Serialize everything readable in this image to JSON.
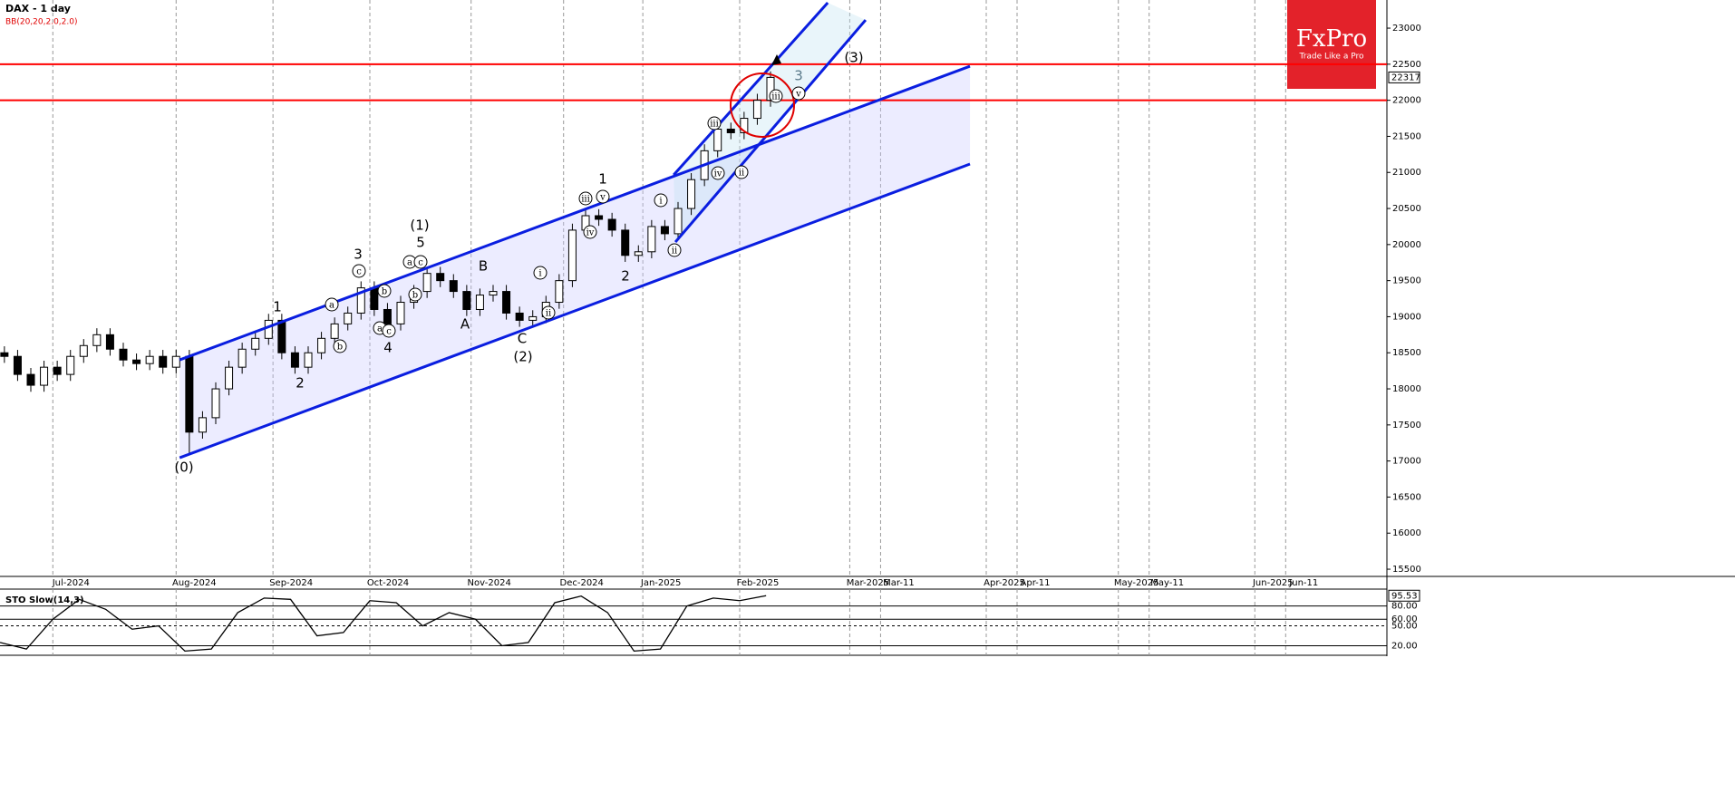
{
  "chart_data": {
    "type": "candlestick",
    "title": "DAX - 1 day",
    "indicator": "BB(20,20,2.0,2.0)",
    "x": [
      1,
      4,
      7,
      10,
      13,
      16,
      19,
      22,
      25,
      28,
      31,
      34,
      37,
      40,
      43,
      46,
      49,
      52,
      55,
      58,
      61,
      64,
      67,
      70,
      73,
      76,
      79,
      82,
      85,
      88,
      91,
      94,
      97,
      100,
      103,
      106,
      109,
      112,
      115,
      118,
      121,
      124,
      127,
      130,
      133,
      136,
      139,
      142,
      145,
      148,
      151,
      154,
      157,
      160,
      163,
      166,
      169,
      172,
      175
    ],
    "open": [
      18500,
      18450,
      18200,
      18050,
      18300,
      18200,
      18450,
      18600,
      18750,
      18550,
      18400,
      18350,
      18450,
      18300,
      18450,
      17400,
      17600,
      18000,
      18300,
      18550,
      18700,
      18950,
      18500,
      18300,
      18500,
      18700,
      18900,
      19050,
      19400,
      19100,
      18900,
      19200,
      19350,
      19600,
      19500,
      19350,
      19100,
      19300,
      19350,
      19050,
      18950,
      19000,
      19200,
      19500,
      20200,
      20400,
      20350,
      20200,
      19850,
      19900,
      20250,
      20150,
      20500,
      20900,
      21300,
      21600,
      21550,
      21750,
      22000
    ],
    "high": [
      18590,
      18540,
      18290,
      18390,
      18390,
      18540,
      18690,
      18840,
      18840,
      18640,
      18490,
      18540,
      18540,
      18540,
      18540,
      17690,
      18090,
      18390,
      18640,
      18790,
      19040,
      19040,
      18590,
      18590,
      18790,
      18990,
      19140,
      19490,
      19490,
      19190,
      19290,
      19440,
      19690,
      19690,
      19590,
      19440,
      19390,
      19440,
      19440,
      19140,
      19090,
      19290,
      19590,
      20290,
      20490,
      20490,
      20440,
      20290,
      19990,
      20340,
      20340,
      20590,
      20990,
      21390,
      21690,
      21690,
      21840,
      22090,
      22400
    ],
    "low": [
      18360,
      18110,
      17960,
      17960,
      18110,
      18110,
      18360,
      18510,
      18460,
      18310,
      18260,
      18260,
      18210,
      18210,
      17100,
      17310,
      17510,
      17910,
      18210,
      18460,
      18610,
      18410,
      18210,
      18210,
      18410,
      18610,
      18810,
      18960,
      19010,
      18810,
      18810,
      19110,
      19260,
      19410,
      19260,
      19010,
      19010,
      19210,
      18960,
      18860,
      18860,
      18910,
      19110,
      19410,
      20110,
      20260,
      20110,
      19760,
      19760,
      19810,
      20060,
      20060,
      20410,
      20810,
      21210,
      21460,
      21460,
      21660,
      21910
    ],
    "close": [
      18450,
      18200,
      18050,
      18300,
      18200,
      18450,
      18600,
      18750,
      18550,
      18400,
      18350,
      18450,
      18300,
      18450,
      17400,
      17600,
      18000,
      18300,
      18550,
      18700,
      18950,
      18500,
      18300,
      18500,
      18700,
      18900,
      19050,
      19400,
      19100,
      18900,
      19200,
      19350,
      19600,
      19500,
      19350,
      19100,
      19300,
      19350,
      19050,
      18950,
      19000,
      19200,
      19500,
      20200,
      20400,
      20350,
      20200,
      19850,
      19900,
      20250,
      20150,
      20500,
      20900,
      21300,
      21600,
      21550,
      21750,
      22000,
      22317
    ],
    "up_color": "#ffffff",
    "down_color": "#000000",
    "xlim": [
      0,
      315
    ],
    "ylim": [
      15400,
      23390
    ],
    "yticks": [
      15500,
      16000,
      16500,
      17000,
      17500,
      18000,
      18500,
      19000,
      19500,
      20000,
      20500,
      21000,
      21500,
      22000,
      22500,
      23000
    ],
    "xticks": [
      {
        "value": 12,
        "label": "Jul-2024"
      },
      {
        "value": 40,
        "label": "Aug-2024"
      },
      {
        "value": 62,
        "label": "Sep-2024"
      },
      {
        "value": 84,
        "label": "Oct-2024"
      },
      {
        "value": 107,
        "label": "Nov-2024"
      },
      {
        "value": 128,
        "label": "Dec-2024"
      },
      {
        "value": 146,
        "label": "Jan-2025"
      },
      {
        "value": 168,
        "label": "Feb-2025"
      },
      {
        "value": 193,
        "label": "Mar-2025"
      },
      {
        "value": 200,
        "label": "Mar-11"
      },
      {
        "value": 224,
        "label": "Apr-2025"
      },
      {
        "value": 231,
        "label": "Apr-11"
      },
      {
        "value": 254,
        "label": "May-2025"
      },
      {
        "value": 261,
        "label": "May-11"
      },
      {
        "value": 285,
        "label": "Jun-2025"
      },
      {
        "value": 292,
        "label": "Jun-11"
      }
    ],
    "last_price": 22317,
    "levels": [
      22500,
      22000
    ],
    "level_color": "#ff0000",
    "channel_color": "#0a1ee0",
    "channels": [
      {
        "x": [
          40.8,
          220.3
        ],
        "y": [
          18402,
          22472
        ]
      },
      {
        "x": [
          40.8,
          220.3
        ],
        "y": [
          17045,
          21116
        ]
      },
      {
        "x": [
          153,
          188
        ],
        "y": [
          20965,
          23352
        ]
      },
      {
        "x": [
          153.4,
          196.6
        ],
        "y": [
          20035,
          23113
        ]
      }
    ],
    "wave_labels": [
      "(0)",
      "1",
      "2",
      "3",
      "4",
      "(1)",
      "5",
      "A",
      "B",
      "C",
      "(2)",
      "1",
      "2",
      "3",
      "(3)"
    ],
    "subwave_labels": [
      "a",
      "b",
      "c",
      "a",
      "c",
      "b",
      "a",
      "c",
      "b",
      "i",
      "ii",
      "iii",
      "iv",
      "v",
      "i",
      "ii",
      "iii",
      "iv",
      "ii",
      "iii",
      "v"
    ],
    "stochastic": {
      "title": "STO Slow(14,3)",
      "x": [
        0,
        6,
        12,
        18,
        24,
        30,
        36,
        42,
        48,
        54,
        60,
        66,
        72,
        78,
        84,
        90,
        96,
        102,
        108,
        114,
        120,
        126,
        132,
        138,
        144,
        150,
        156,
        162,
        168,
        174
      ],
      "values": [
        25,
        15,
        60,
        90,
        75,
        45,
        50,
        12,
        15,
        70,
        92,
        90,
        35,
        40,
        88,
        85,
        50,
        70,
        60,
        20,
        25,
        85,
        95,
        70,
        12,
        15,
        80,
        92,
        88,
        95.53
      ],
      "ylim": [
        7,
        100
      ],
      "yticks": [
        {
          "value": 95.53,
          "label": "95.53"
        },
        {
          "value": 80,
          "label": "80.00"
        },
        {
          "value": 60,
          "label": "60.00"
        },
        {
          "value": 50,
          "label": "50.00"
        },
        {
          "value": 20,
          "label": "20.00"
        }
      ]
    }
  },
  "logo": {
    "name": "FxPro",
    "tagline": "Trade Like a Pro"
  }
}
